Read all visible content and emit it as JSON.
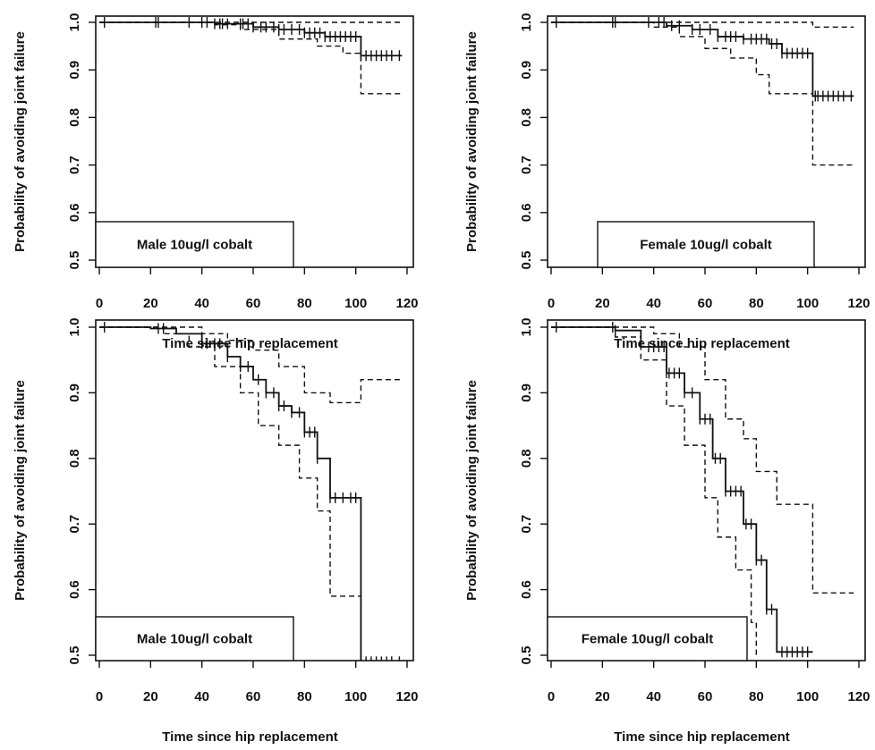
{
  "chart_data": [
    {
      "type": "line",
      "xlabel": "Time since hip replacement",
      "ylabel": "Probability of avoiding joint failure",
      "xlim": [
        0,
        120
      ],
      "ylim": [
        0.5,
        1.0
      ],
      "xticks": [
        "0",
        "20",
        "40",
        "60",
        "80",
        "100",
        "120"
      ],
      "yticks": [
        "0.5",
        "0.6",
        "0.7",
        "0.8",
        "0.9",
        "1.0"
      ],
      "legend": {
        "label": "Male 10ug/l cobalt",
        "placement": "bottom-left"
      },
      "survival": [
        [
          0,
          1.0
        ],
        [
          45,
          0.997
        ],
        [
          60,
          0.99
        ],
        [
          70,
          0.985
        ],
        [
          80,
          0.978
        ],
        [
          88,
          0.97
        ],
        [
          102,
          0.93
        ],
        [
          118,
          0.93
        ]
      ],
      "ci_upper": [
        [
          0,
          1.0
        ],
        [
          118,
          1.0
        ]
      ],
      "ci_lower": [
        [
          0,
          1.0
        ],
        [
          45,
          0.995
        ],
        [
          55,
          0.985
        ],
        [
          70,
          0.965
        ],
        [
          85,
          0.95
        ],
        [
          95,
          0.935
        ],
        [
          102,
          0.85
        ],
        [
          118,
          0.85
        ]
      ],
      "censored_times": [
        2,
        22,
        23,
        35,
        40,
        42,
        45,
        47,
        48,
        50,
        55,
        56,
        58,
        60,
        63,
        65,
        68,
        70,
        72,
        75,
        78,
        80,
        82,
        84,
        86,
        88,
        90,
        92,
        94,
        96,
        98,
        100,
        102,
        104,
        106,
        108,
        110,
        112,
        114,
        117
      ]
    },
    {
      "type": "line",
      "xlabel": "Time since hip replacement",
      "ylabel": "Probability of avoiding joint failure",
      "xlim": [
        0,
        120
      ],
      "ylim": [
        0.5,
        1.0
      ],
      "xticks": [
        "0",
        "20",
        "40",
        "60",
        "80",
        "100",
        "120"
      ],
      "yticks": [
        "0.5",
        "0.6",
        "0.7",
        "0.8",
        "0.9",
        "1.0"
      ],
      "legend": {
        "label": "Female 10ug/l cobalt",
        "placement": "bottom-center"
      },
      "survival": [
        [
          0,
          1.0
        ],
        [
          45,
          0.993
        ],
        [
          55,
          0.985
        ],
        [
          65,
          0.97
        ],
        [
          75,
          0.965
        ],
        [
          85,
          0.955
        ],
        [
          90,
          0.935
        ],
        [
          102,
          0.845
        ],
        [
          118,
          0.845
        ]
      ],
      "ci_upper": [
        [
          0,
          1.0
        ],
        [
          102,
          1.0
        ],
        [
          102,
          0.99
        ],
        [
          118,
          0.99
        ]
      ],
      "ci_lower": [
        [
          0,
          1.0
        ],
        [
          40,
          0.99
        ],
        [
          50,
          0.97
        ],
        [
          60,
          0.945
        ],
        [
          70,
          0.925
        ],
        [
          80,
          0.89
        ],
        [
          85,
          0.85
        ],
        [
          102,
          0.7
        ],
        [
          118,
          0.7
        ]
      ],
      "censored_times": [
        2,
        24,
        25,
        38,
        42,
        44,
        47,
        50,
        55,
        58,
        62,
        65,
        68,
        70,
        72,
        75,
        78,
        80,
        82,
        84,
        86,
        88,
        90,
        92,
        94,
        96,
        98,
        100,
        103,
        104,
        106,
        108,
        110,
        112,
        114,
        117
      ]
    },
    {
      "type": "line",
      "xlabel": "Time since hip replacement",
      "ylabel": "Probability of avoiding joint failure",
      "xlim": [
        0,
        120
      ],
      "ylim": [
        0.5,
        1.0
      ],
      "xticks": [
        "0",
        "20",
        "40",
        "60",
        "80",
        "100",
        "120"
      ],
      "yticks": [
        "0.5",
        "0.6",
        "0.7",
        "0.8",
        "0.9",
        "1.0"
      ],
      "legend": {
        "label": "Male 10ug/l cobalt",
        "placement": "bottom-left"
      },
      "survival": [
        [
          0,
          1.0
        ],
        [
          20,
          0.998
        ],
        [
          30,
          0.99
        ],
        [
          40,
          0.975
        ],
        [
          50,
          0.955
        ],
        [
          55,
          0.94
        ],
        [
          60,
          0.92
        ],
        [
          65,
          0.9
        ],
        [
          70,
          0.88
        ],
        [
          75,
          0.87
        ],
        [
          80,
          0.84
        ],
        [
          85,
          0.8
        ],
        [
          90,
          0.74
        ],
        [
          102,
          0.74
        ],
        [
          102,
          0.49
        ],
        [
          118,
          0.49
        ]
      ],
      "ci_upper": [
        [
          0,
          1.0
        ],
        [
          30,
          1.0
        ],
        [
          40,
          0.99
        ],
        [
          50,
          0.98
        ],
        [
          60,
          0.965
        ],
        [
          70,
          0.94
        ],
        [
          80,
          0.9
        ],
        [
          90,
          0.885
        ],
        [
          100,
          0.885
        ],
        [
          102,
          0.92
        ],
        [
          118,
          0.92
        ]
      ],
      "ci_lower": [
        [
          0,
          1.0
        ],
        [
          25,
          0.99
        ],
        [
          35,
          0.97
        ],
        [
          45,
          0.94
        ],
        [
          55,
          0.9
        ],
        [
          62,
          0.85
        ],
        [
          70,
          0.82
        ],
        [
          78,
          0.77
        ],
        [
          85,
          0.72
        ],
        [
          90,
          0.59
        ],
        [
          102,
          0.59
        ],
        [
          102,
          0.49
        ]
      ],
      "censored_times": [
        2,
        23,
        25,
        40,
        42,
        45,
        47,
        50,
        55,
        58,
        62,
        65,
        68,
        70,
        72,
        75,
        78,
        80,
        82,
        84,
        85,
        90,
        92,
        95,
        98,
        100,
        104,
        106,
        108,
        110,
        112,
        114,
        117
      ]
    },
    {
      "type": "line",
      "xlabel": "Time since hip replacement",
      "ylabel": "Probability of avoiding joint failure",
      "xlim": [
        0,
        120
      ],
      "ylim": [
        0.5,
        1.0
      ],
      "xticks": [
        "0",
        "20",
        "40",
        "60",
        "80",
        "100",
        "120"
      ],
      "yticks": [
        "0.5",
        "0.6",
        "0.7",
        "0.8",
        "0.9",
        "1.0"
      ],
      "legend": {
        "label": "Female 10ug/l cobalt",
        "placement": "bottom-left"
      },
      "survival": [
        [
          0,
          1.0
        ],
        [
          25,
          0.995
        ],
        [
          35,
          0.97
        ],
        [
          45,
          0.93
        ],
        [
          52,
          0.9
        ],
        [
          58,
          0.86
        ],
        [
          63,
          0.8
        ],
        [
          68,
          0.75
        ],
        [
          75,
          0.7
        ],
        [
          80,
          0.645
        ],
        [
          84,
          0.57
        ],
        [
          88,
          0.505
        ],
        [
          102,
          0.505
        ]
      ],
      "ci_upper": [
        [
          0,
          1.0
        ],
        [
          30,
          1.0
        ],
        [
          40,
          0.99
        ],
        [
          50,
          0.97
        ],
        [
          60,
          0.92
        ],
        [
          68,
          0.86
        ],
        [
          75,
          0.83
        ],
        [
          80,
          0.78
        ],
        [
          88,
          0.73
        ],
        [
          102,
          0.73
        ],
        [
          102,
          0.595
        ],
        [
          118,
          0.595
        ]
      ],
      "ci_lower": [
        [
          0,
          1.0
        ],
        [
          25,
          0.985
        ],
        [
          35,
          0.95
        ],
        [
          45,
          0.88
        ],
        [
          52,
          0.82
        ],
        [
          60,
          0.74
        ],
        [
          65,
          0.68
        ],
        [
          72,
          0.63
        ],
        [
          78,
          0.55
        ],
        [
          80,
          0.5
        ]
      ],
      "censored_times": [
        2,
        24,
        25,
        38,
        40,
        42,
        44,
        46,
        48,
        50,
        52,
        55,
        58,
        60,
        62,
        64,
        66,
        68,
        70,
        72,
        74,
        76,
        78,
        80,
        82,
        84,
        86,
        90,
        92,
        94,
        96,
        98,
        100
      ]
    }
  ]
}
